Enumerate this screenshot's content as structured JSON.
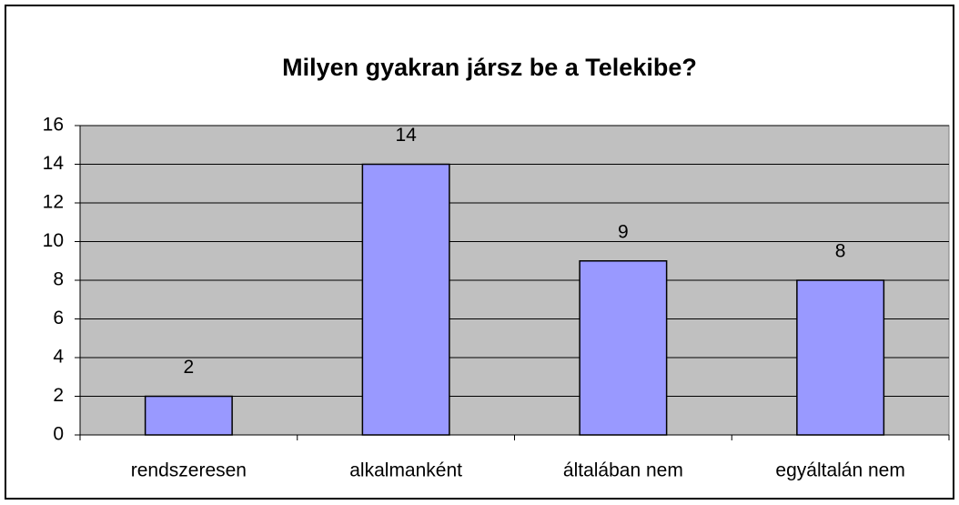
{
  "chart_data": {
    "type": "bar",
    "title": "Milyen gyakran jársz be a Telekibe?",
    "categories": [
      "rendszeresen",
      "alkalmanként",
      "általában nem",
      "egyáltalán nem"
    ],
    "values": [
      2,
      14,
      9,
      8
    ],
    "color": "#9999ff",
    "plot_background": "#c0c0c0",
    "ylim": [
      0,
      16
    ],
    "yticks": [
      0,
      2,
      4,
      6,
      8,
      10,
      12,
      14,
      16
    ],
    "grid": true
  }
}
